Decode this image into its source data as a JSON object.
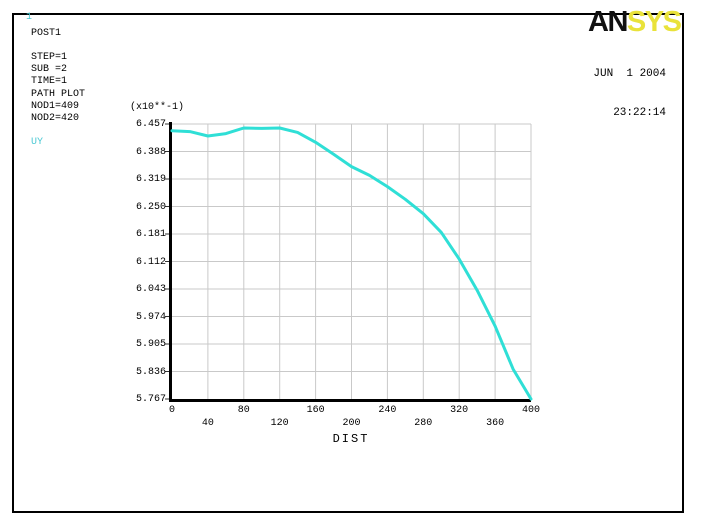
{
  "window": {
    "plot_number": "1",
    "info_lines": [
      "POST1",
      "STEP=1",
      "SUB =2",
      "TIME=1",
      "PATH PLOT",
      "NOD1=409",
      "NOD2=420"
    ],
    "series_label": "UY",
    "logo": {
      "part1": "AN",
      "part2": "SYS"
    },
    "date": "JUN  1 2004",
    "time": "23:22:14",
    "colors": {
      "curve_cyan": "#2fdfd6",
      "label_cyan": "#4cc9d4",
      "logo_yellow": "#e9e23a",
      "grid_gray": "#c9c9c9",
      "axis_black": "#000000"
    }
  },
  "chart_data": {
    "type": "line",
    "title": "",
    "xlabel": "DIST",
    "ylabel": "UY",
    "y_multiplier_label": "(x10**-1)",
    "legend_position": "none",
    "grid": true,
    "xlim": [
      0,
      400
    ],
    "ylim": [
      5.767,
      6.457
    ],
    "x_ticks": [
      0,
      40,
      80,
      120,
      160,
      200,
      240,
      280,
      320,
      360,
      400
    ],
    "y_ticks": [
      6.457,
      6.388,
      6.319,
      6.25,
      6.181,
      6.112,
      6.043,
      5.974,
      5.905,
      5.836,
      5.767
    ],
    "series": [
      {
        "name": "UY",
        "x": [
          0,
          20,
          40,
          60,
          80,
          100,
          120,
          140,
          160,
          180,
          200,
          220,
          240,
          260,
          280,
          300,
          320,
          340,
          360,
          380,
          400
        ],
        "y": [
          6.44,
          6.438,
          6.427,
          6.433,
          6.447,
          6.446,
          6.447,
          6.436,
          6.411,
          6.381,
          6.35,
          6.328,
          6.3,
          6.268,
          6.232,
          6.185,
          6.118,
          6.04,
          5.95,
          5.842,
          5.767
        ]
      }
    ]
  }
}
